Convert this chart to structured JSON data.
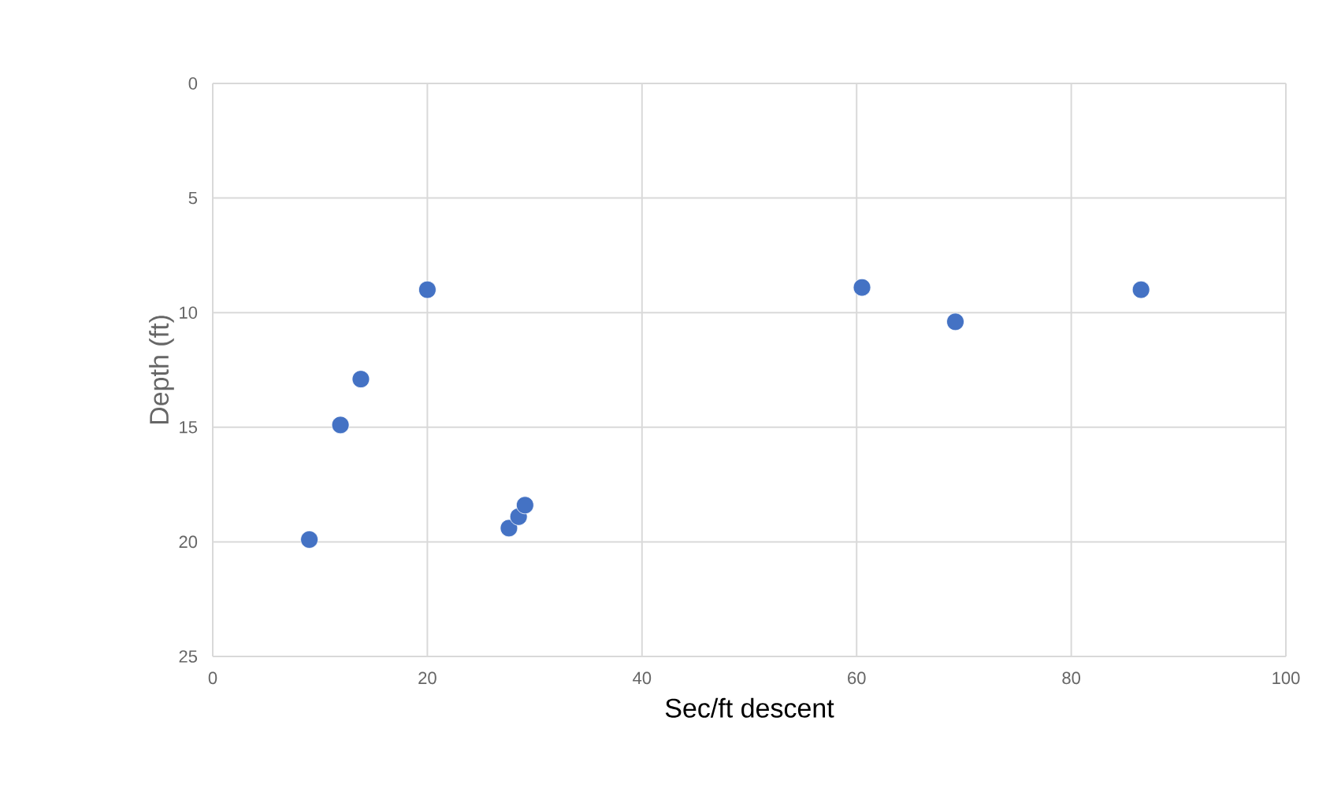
{
  "chart_data": {
    "type": "scatter",
    "xlabel": "Sec/ft descent",
    "ylabel": "Depth (ft)",
    "x": [
      20,
      60.5,
      69.2,
      86.5,
      13.8,
      11.9,
      9.0,
      27.6,
      28.5,
      29.1
    ],
    "values": [
      9.0,
      8.9,
      10.4,
      9.0,
      12.9,
      14.9,
      19.9,
      19.4,
      18.9,
      18.4
    ],
    "color": "#4472c4",
    "marker": "circle",
    "xlim": [
      0,
      100
    ],
    "xticks": [
      0,
      20,
      40,
      60,
      80,
      100
    ],
    "ylim": [
      25,
      0
    ],
    "yticks": [
      0,
      5,
      10,
      15,
      20,
      25
    ],
    "grid": true
  }
}
